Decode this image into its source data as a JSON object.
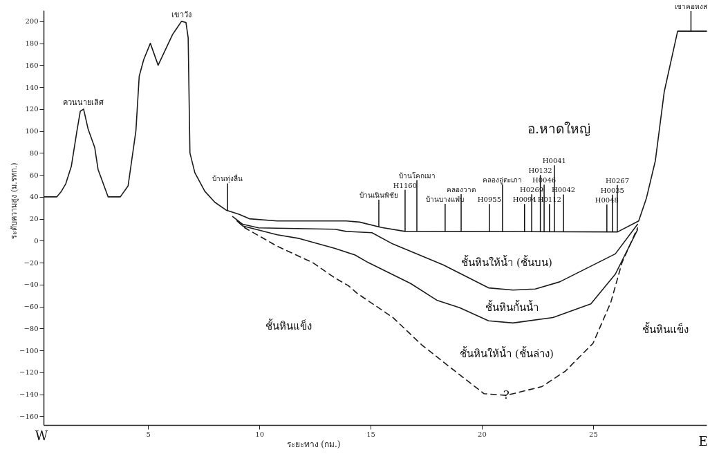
{
  "chart_data": {
    "type": "line",
    "title": "อ.หาดใหญ่",
    "xlabel": "ระยะทาง (กม.)",
    "ylabel": "ระดับความสูง (ม.รทก.)",
    "xlim": [
      0.3,
      30.1
    ],
    "xticks": [
      5,
      10,
      15,
      20,
      25
    ],
    "ylim": [
      -168,
      210
    ],
    "yticks": [
      -160,
      -140,
      -120,
      -100,
      -80,
      -60,
      -40,
      -20,
      0,
      20,
      40,
      60,
      80,
      100,
      120,
      140,
      160,
      180,
      200
    ],
    "grid": false,
    "marker": "none",
    "line_style": "solid",
    "series": [
      {
        "color": "#1a1a1a",
        "x": [
          0.34,
          0.9,
          1.1,
          1.3,
          1.55,
          1.8,
          1.95,
          2.1,
          2.3,
          2.6,
          2.75,
          3.2,
          3.75,
          4.1,
          4.45,
          4.6,
          4.8,
          5.1,
          5.45,
          6.1,
          6.5,
          6.7,
          6.8,
          6.88,
          7.1,
          7.55,
          8.0,
          8.5,
          9.1,
          9.55,
          10.8,
          13.9,
          14.5,
          15.5,
          16.55,
          26.1,
          27.05,
          27.4,
          27.8,
          28.2,
          28.8,
          30.1
        ],
        "values": [
          40,
          40,
          45,
          52,
          68,
          100,
          118,
          120,
          102,
          85,
          65,
          40,
          40,
          50,
          100,
          150,
          165,
          180,
          160,
          188,
          200,
          199,
          185,
          80,
          62,
          45,
          35,
          28,
          24,
          20,
          18,
          18,
          17,
          12,
          8.5,
          8,
          18,
          39,
          73,
          136,
          191,
          191
        ]
      },
      {
        "color": "#1a1a1a",
        "x": [
          8.8,
          9.25,
          9.97,
          13.4,
          13.9,
          15.06,
          16.0,
          18.26,
          20.3,
          21.4,
          22.4,
          23.5,
          26.0,
          27.0
        ],
        "values": [
          22,
          15,
          11.7,
          10.4,
          8.5,
          7.3,
          -3,
          -22,
          -43,
          -45,
          -44,
          -37.5,
          -12,
          15
        ]
      },
      {
        "color": "#1a1a1a",
        "x": [
          9.0,
          9.25,
          10.8,
          11.8,
          13.4,
          14.3,
          14.9,
          16.8,
          18.0,
          19.0,
          20.3,
          21.4,
          23.2,
          24.9,
          26.0,
          27.0
        ],
        "values": [
          18,
          13.5,
          5.4,
          2,
          -7,
          -13,
          -20,
          -39,
          -54.5,
          -61,
          -73,
          -75,
          -70,
          -57.6,
          -30.5,
          10
        ]
      },
      {
        "color": "#1a1a1a",
        "line_style": "dashed",
        "x": [
          9.0,
          9.35,
          10.8,
          12.4,
          13.4,
          14.0,
          14.4,
          16.0,
          17.3,
          18.8,
          20.1,
          21.1,
          22.7,
          23.75,
          25.0,
          25.8,
          26.3,
          27.0
        ],
        "values": [
          18,
          11.7,
          -5,
          -20,
          -34,
          -41,
          -48,
          -70,
          -95,
          -119,
          -139.5,
          -141,
          -133,
          -119,
          -93.5,
          -56,
          -20,
          11.7
        ]
      }
    ],
    "annotations": [
      "W",
      "E",
      "ชั้นหินให้น้ำ (ชั้นบน)",
      "ชั้นหินกั้นน้ำ",
      "ชั้นหินให้น้ำ (ชั้นล่าง)",
      "ชั้นหินแข็ง",
      "ชั้นหินแข็ง",
      {
        "text": "ควนนายเลิศ",
        "x": 2.1,
        "y": 120
      },
      {
        "text": "เขาวัง",
        "x": 6.5,
        "y": 200
      },
      {
        "text": "เขาคอหงส",
        "x": 29.4,
        "y": 191
      },
      {
        "text": "บ้านทุ่งลื่น",
        "x": 8.57,
        "y": 27
      },
      {
        "text": "บ้านเนินพิชัย",
        "x": 15.37,
        "y": 12.2
      },
      {
        "text": "บ้านโคกเมา",
        "x": 17.08,
        "y": 8.5
      },
      {
        "text": "บ้านบางแฟ่บ",
        "x": 18.35,
        "y": 8.4
      },
      {
        "text": "H1160",
        "x": 16.55,
        "y": 8.5
      },
      {
        "text": "คลองวาด",
        "x": 19.07,
        "y": 8.4
      },
      {
        "text": "H0955",
        "x": 20.34,
        "y": 8.3
      },
      {
        "text": "คลองอู่ตะเภา",
        "x": 20.93,
        "y": 8.3
      },
      {
        "text": "H0094",
        "x": 21.92,
        "y": 8.2
      },
      {
        "text": "H0269",
        "x": 22.24,
        "y": 8.2
      },
      {
        "text": "H0132",
        "x": 22.63,
        "y": 8.2
      },
      {
        "text": "H0046",
        "x": 22.8,
        "y": 8.2
      },
      {
        "text": "H0112",
        "x": 23.04,
        "y": 8.2
      },
      {
        "text": "H0041",
        "x": 23.26,
        "y": 8.2
      },
      {
        "text": "H0042",
        "x": 23.67,
        "y": 8.1
      },
      {
        "text": "H0048",
        "x": 25.62,
        "y": 8
      },
      {
        "text": "H0035",
        "x": 25.87,
        "y": 8
      },
      {
        "text": "H0267",
        "x": 26.09,
        "y": 8
      },
      {
        "text": "?",
        "x": 21.1,
        "y": -141
      }
    ]
  }
}
